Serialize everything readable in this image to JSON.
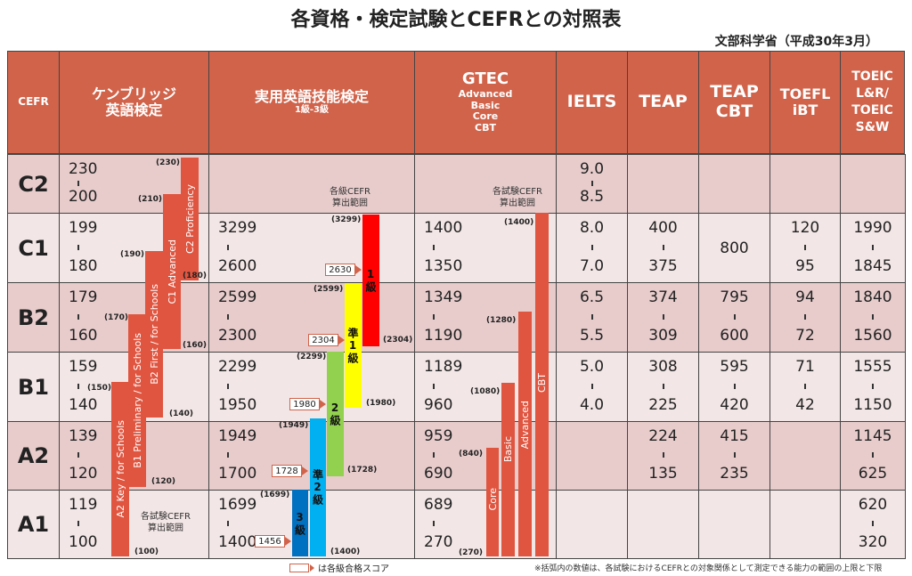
{
  "title": "各資格・検定試験とCEFRとの対照表",
  "subtitle": "文部科学省（平成30年3月）",
  "headers": {
    "cefr": "CEFR",
    "cambridge": [
      "ケンブリッジ",
      "英語検定"
    ],
    "eiken": {
      "name": "実用英語技能検定",
      "sub": "1級-3級"
    },
    "gtec": {
      "name": "GTEC",
      "subs": [
        "Advanced",
        "Basic",
        "Core",
        "CBT"
      ]
    },
    "ielts": "IELTS",
    "teap": "TEAP",
    "teap_cbt": [
      "TEAP",
      "CBT"
    ],
    "toefl": [
      "TOEFL",
      "iBT"
    ],
    "toeic": [
      "TOEIC",
      "L&R/",
      "TOEIC",
      "S&W"
    ]
  },
  "rows": [
    {
      "level": "C2",
      "scores": [
        [
          "230",
          "200"
        ],
        null,
        null,
        [
          "9.0",
          "8.5"
        ],
        null,
        null,
        null,
        null
      ]
    },
    {
      "level": "C1",
      "scores": [
        [
          "199",
          "180"
        ],
        [
          "3299",
          "2600"
        ],
        [
          "1400",
          "1350"
        ],
        [
          "8.0",
          "7.0"
        ],
        [
          "400",
          "375"
        ],
        [
          "800"
        ],
        [
          "120",
          "95"
        ],
        [
          "1990",
          "1845"
        ]
      ]
    },
    {
      "level": "B2",
      "scores": [
        [
          "179",
          "160"
        ],
        [
          "2599",
          "2300"
        ],
        [
          "1349",
          "1190"
        ],
        [
          "6.5",
          "5.5"
        ],
        [
          "374",
          "309"
        ],
        [
          "795",
          "600"
        ],
        [
          "94",
          "72"
        ],
        [
          "1840",
          "1560"
        ]
      ]
    },
    {
      "level": "B1",
      "scores": [
        [
          "159",
          "140"
        ],
        [
          "2299",
          "1950"
        ],
        [
          "1189",
          "960"
        ],
        [
          "5.0",
          "4.0"
        ],
        [
          "308",
          "225"
        ],
        [
          "595",
          "420"
        ],
        [
          "71",
          "42"
        ],
        [
          "1555",
          "1150"
        ]
      ]
    },
    {
      "level": "A2",
      "scores": [
        [
          "139",
          "120"
        ],
        [
          "1949",
          "1700"
        ],
        [
          "959",
          "690"
        ],
        null,
        [
          "224",
          "135"
        ],
        [
          "415",
          "235"
        ],
        null,
        [
          "1145",
          "625"
        ]
      ]
    },
    {
      "level": "A1",
      "scores": [
        [
          "119",
          "100"
        ],
        [
          "1699",
          "1400"
        ],
        [
          "689",
          "270"
        ],
        null,
        null,
        null,
        null,
        [
          "620",
          "320"
        ]
      ]
    }
  ],
  "cambridge_bars": [
    {
      "label": "C2 Proficiency",
      "upper": "(230)",
      "lower": "(180)"
    },
    {
      "label": "C1 Advanced",
      "upper": "(210)",
      "lower": "(160)"
    },
    {
      "label": "B2 First / for Schools",
      "upper": "(190)",
      "lower": "(140)"
    },
    {
      "label": "B1 Preliminary / for Schools",
      "upper": "(170)",
      "lower": "(120)"
    },
    {
      "label": "A2 Key / for Schools",
      "upper": "(150)",
      "lower": "(100)"
    }
  ],
  "cambridge_note": [
    "各試験CEFR",
    "算出範囲"
  ],
  "eiken_bars": [
    {
      "label": "1級",
      "upper": "(3299)",
      "lower": "(2304)",
      "pass": "2630",
      "color": "#ff0000"
    },
    {
      "label": "準1級",
      "upper": "(2599)",
      "lower": "(1980)",
      "pass": "2304",
      "color": "#ffff00"
    },
    {
      "label": "2級",
      "upper": "(2299)",
      "lower": "(1728)",
      "pass": "1980",
      "color": "#92d050"
    },
    {
      "label": "準2級",
      "upper": "(1949)",
      "lower": "(1400)",
      "pass": "1728",
      "color": "#00b0f0"
    },
    {
      "label": "3級",
      "upper": "(1699)",
      "lower": "",
      "pass": "1456",
      "color": "#0070c0"
    }
  ],
  "eiken_note": [
    "各級CEFR",
    "算出範囲"
  ],
  "gtec_bars": [
    {
      "label": "CBT",
      "upper": "(1400)"
    },
    {
      "label": "Advanced",
      "upper": "(1280)"
    },
    {
      "label": "Basic",
      "upper": "(1080)"
    },
    {
      "label": "Core",
      "upper": "(840)",
      "lower": "(270)"
    }
  ],
  "gtec_note": [
    "各試験CEFR",
    "算出範囲"
  ],
  "legend": "は各級合格スコア",
  "footnote": "※括弧内の数値は、各試験におけるCEFRとの対象関係として測定できる能力の範囲の上限と下限",
  "colors": {
    "header": "#d0634a",
    "bar": "#e05540",
    "row_dark": "#e8cccc",
    "row_light": "#f3e6e6"
  }
}
